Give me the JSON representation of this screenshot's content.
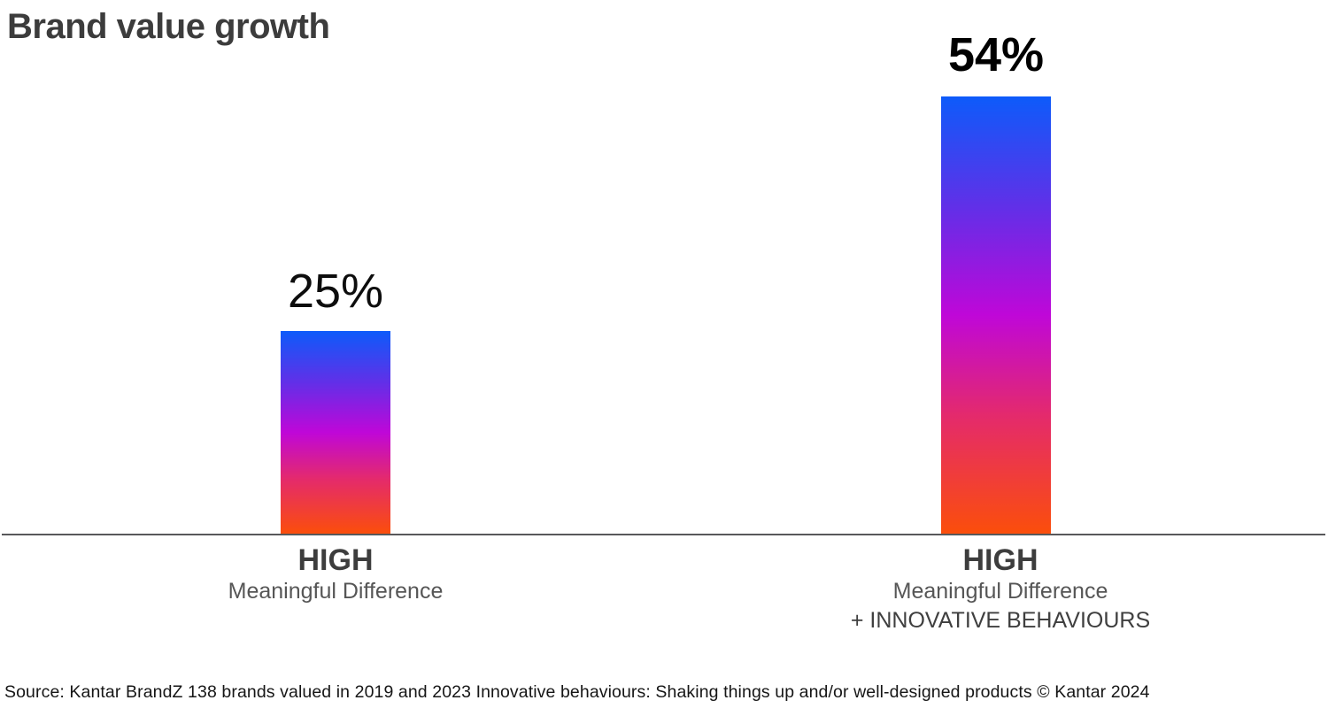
{
  "title": "Brand value growth",
  "source": "Source: Kantar BrandZ 138 brands valued in 2019 and 2023 Innovative behaviours: Shaking things up and/or well-designed products © Kantar 2024",
  "chart_data": {
    "type": "bar",
    "title": "Brand value growth",
    "categories": [
      "HIGH Meaningful Difference",
      "HIGH Meaningful Difference + INNOVATIVE BEHAVIOURS"
    ],
    "values": [
      25,
      54
    ],
    "value_labels": [
      "25%",
      "54%"
    ],
    "unit": "percent",
    "ylim": [
      0,
      60
    ],
    "grid": false,
    "legend": "none",
    "xlabel": "",
    "ylabel": "",
    "bar_gradient_stops": [
      "#0d5bfa",
      "#6030e8",
      "#bf07d8",
      "#e42a6c",
      "#fb4e0b"
    ],
    "axis_line_color": "#58585a",
    "value_label_weights": [
      "light",
      "bold"
    ],
    "source": "Source: Kantar BrandZ 138 brands valued in 2019 and 2023 Innovative behaviours: Shaking things up and/or well-designed products © Kantar 2024"
  },
  "categories_display": [
    {
      "line1": "HIGH",
      "line2": "Meaningful Difference"
    },
    {
      "line1": "HIGH",
      "line2": "Meaningful Difference",
      "line3": "+ INNOVATIVE BEHAVIOURS"
    }
  ]
}
